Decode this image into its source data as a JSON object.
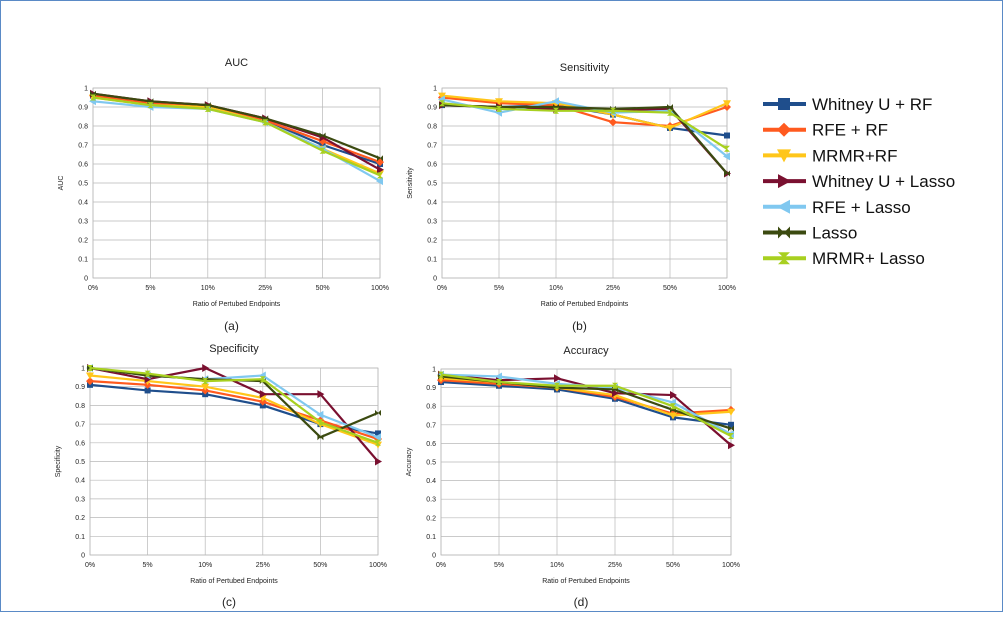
{
  "colors": {
    "Whitney U + RF": "#1f4e8c",
    "RFE +  RF": "#ff5a1f",
    "MRMR+RF": "#ffc61a",
    "Whitney U + Lasso": "#7a1030",
    "RFE + Lasso": "#80c8f0",
    "Lasso": "#3b4a10",
    "MRMR+ Lasso": "#a8d020"
  },
  "markers": {
    "Whitney U + RF": "square",
    "RFE +  RF": "diamond",
    "MRMR+RF": "triangle-down",
    "Whitney U + Lasso": "triangle-right",
    "RFE + Lasso": "triangle-left",
    "Lasso": "bowtie",
    "MRMR+ Lasso": "hourglass"
  },
  "legend": [
    "Whitney U + RF",
    "RFE +  RF",
    "MRMR+RF",
    "Whitney U + Lasso",
    "RFE + Lasso",
    "Lasso",
    "MRMR+ Lasso"
  ],
  "chart_data": [
    {
      "type": "line",
      "title": "AUC",
      "caption": "(a)",
      "xlabel": "Ratio of Pertubed Endpoints",
      "ylabel": "AUC",
      "categories": [
        "0%",
        "5%",
        "10%",
        "25%",
        "50%",
        "100%"
      ],
      "ylim": [
        0,
        1
      ],
      "yticks": [
        "0",
        "0.1",
        "0.2",
        "0.3",
        "0.4",
        "0.5",
        "0.6",
        "0.7",
        "0.8",
        "0.9",
        "1"
      ],
      "series": [
        {
          "name": "Whitney U + RF",
          "values": [
            0.96,
            0.92,
            0.9,
            0.83,
            0.7,
            0.6
          ]
        },
        {
          "name": "RFE +  RF",
          "values": [
            0.96,
            0.92,
            0.9,
            0.83,
            0.72,
            0.61
          ]
        },
        {
          "name": "MRMR+RF",
          "values": [
            0.95,
            0.91,
            0.9,
            0.82,
            0.68,
            0.55
          ]
        },
        {
          "name": "Whitney U + Lasso",
          "values": [
            0.97,
            0.93,
            0.91,
            0.84,
            0.74,
            0.57
          ]
        },
        {
          "name": "RFE + Lasso",
          "values": [
            0.93,
            0.9,
            0.89,
            0.82,
            0.68,
            0.51
          ]
        },
        {
          "name": "Lasso",
          "values": [
            0.97,
            0.93,
            0.91,
            0.84,
            0.75,
            0.63
          ]
        },
        {
          "name": "MRMR+ Lasso",
          "values": [
            0.95,
            0.91,
            0.89,
            0.82,
            0.67,
            0.54
          ]
        }
      ]
    },
    {
      "type": "line",
      "title": "Sensitivity",
      "caption": "(b)",
      "xlabel": "Ratio of Pertubed Endpoints",
      "ylabel": "Sensitivity",
      "categories": [
        "0%",
        "5%",
        "10%",
        "25%",
        "50%",
        "100%"
      ],
      "ylim": [
        0,
        1
      ],
      "yticks": [
        "0",
        "0.1",
        "0.2",
        "0.3",
        "0.4",
        "0.5",
        "0.6",
        "0.7",
        "0.8",
        "0.9",
        "1"
      ],
      "series": [
        {
          "name": "Whitney U + RF",
          "values": [
            0.91,
            0.9,
            0.91,
            0.86,
            0.79,
            0.75
          ]
        },
        {
          "name": "RFE +  RF",
          "values": [
            0.95,
            0.92,
            0.91,
            0.82,
            0.8,
            0.9
          ]
        },
        {
          "name": "MRMR+RF",
          "values": [
            0.96,
            0.93,
            0.92,
            0.86,
            0.79,
            0.92
          ]
        },
        {
          "name": "Whitney U + Lasso",
          "values": [
            0.91,
            0.9,
            0.89,
            0.88,
            0.89,
            0.55
          ]
        },
        {
          "name": "RFE + Lasso",
          "values": [
            0.94,
            0.87,
            0.93,
            0.87,
            0.88,
            0.64
          ]
        },
        {
          "name": "Lasso",
          "values": [
            0.91,
            0.9,
            0.9,
            0.89,
            0.9,
            0.55
          ]
        },
        {
          "name": "MRMR+ Lasso",
          "values": [
            0.92,
            0.89,
            0.88,
            0.88,
            0.87,
            0.68
          ]
        }
      ]
    },
    {
      "type": "line",
      "title": "Specificity",
      "caption": "(c)",
      "xlabel": "Ratio of Pertubed Endpoints",
      "ylabel": "Specificity",
      "categories": [
        "0%",
        "5%",
        "10%",
        "25%",
        "50%",
        "100%"
      ],
      "ylim": [
        0,
        1
      ],
      "yticks": [
        "0",
        "0.1",
        "0.2",
        "0.3",
        "0.4",
        "0.5",
        "0.6",
        "0.7",
        "0.8",
        "0.9",
        "1"
      ],
      "series": [
        {
          "name": "Whitney U + RF",
          "values": [
            0.91,
            0.88,
            0.86,
            0.8,
            0.7,
            0.65
          ]
        },
        {
          "name": "RFE +  RF",
          "values": [
            0.93,
            0.91,
            0.88,
            0.82,
            0.72,
            0.62
          ]
        },
        {
          "name": "MRMR+RF",
          "values": [
            0.96,
            0.93,
            0.9,
            0.84,
            0.7,
            0.59
          ]
        },
        {
          "name": "Whitney U + Lasso",
          "values": [
            1.0,
            0.94,
            1.0,
            0.86,
            0.86,
            0.5
          ]
        },
        {
          "name": "RFE + Lasso",
          "values": [
            1.0,
            0.96,
            0.94,
            0.96,
            0.75,
            0.63
          ]
        },
        {
          "name": "Lasso",
          "values": [
            1.0,
            0.96,
            0.94,
            0.93,
            0.63,
            0.76
          ]
        },
        {
          "name": "MRMR+ Lasso",
          "values": [
            1.0,
            0.97,
            0.93,
            0.94,
            0.71,
            0.6
          ]
        }
      ]
    },
    {
      "type": "line",
      "title": "Accuracy",
      "caption": "(d)",
      "xlabel": "Ratio of Pertubed Endpoints",
      "ylabel": "Accuracy",
      "categories": [
        "0%",
        "5%",
        "10%",
        "25%",
        "50%",
        "100%"
      ],
      "ylim": [
        0,
        1
      ],
      "yticks": [
        "0",
        "0.1",
        "0.2",
        "0.3",
        "0.4",
        "0.5",
        "0.6",
        "0.7",
        "0.8",
        "0.9",
        "1"
      ],
      "series": [
        {
          "name": "Whitney U + RF",
          "values": [
            0.93,
            0.91,
            0.89,
            0.84,
            0.74,
            0.7
          ]
        },
        {
          "name": "RFE +  RF",
          "values": [
            0.94,
            0.92,
            0.9,
            0.85,
            0.76,
            0.78
          ]
        },
        {
          "name": "MRMR+RF",
          "values": [
            0.95,
            0.93,
            0.9,
            0.86,
            0.75,
            0.77
          ]
        },
        {
          "name": "Whitney U + Lasso",
          "values": [
            0.97,
            0.94,
            0.95,
            0.87,
            0.86,
            0.59
          ]
        },
        {
          "name": "RFE + Lasso",
          "values": [
            0.97,
            0.96,
            0.92,
            0.9,
            0.82,
            0.65
          ]
        },
        {
          "name": "Lasso",
          "values": [
            0.96,
            0.93,
            0.9,
            0.89,
            0.78,
            0.68
          ]
        },
        {
          "name": "MRMR+ Lasso",
          "values": [
            0.97,
            0.93,
            0.91,
            0.91,
            0.8,
            0.64
          ]
        }
      ]
    }
  ]
}
